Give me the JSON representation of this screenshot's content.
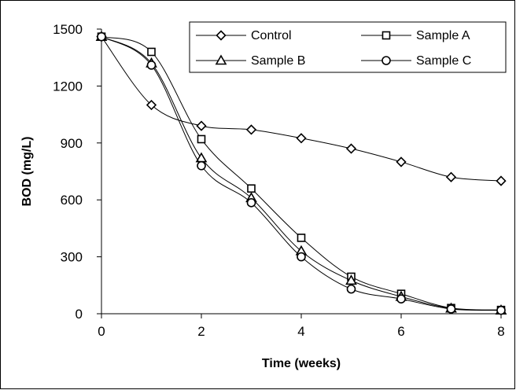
{
  "chart_data": {
    "type": "line",
    "xlabel": "Time (weeks)",
    "ylabel": "BOD (mg/L)",
    "xlim": [
      0,
      8
    ],
    "ylim": [
      0,
      1500
    ],
    "xticks": [
      "0",
      "2",
      "4",
      "6",
      "8"
    ],
    "yticks": [
      "0",
      "300",
      "600",
      "900",
      "1200",
      "1500"
    ],
    "grid": false,
    "legend_position": "top-right",
    "x": [
      0,
      1,
      2,
      3,
      4,
      5,
      6,
      7,
      8
    ],
    "series": [
      {
        "name": "Control",
        "marker": "diamond",
        "values": [
          1460,
          1100,
          990,
          970,
          925,
          870,
          800,
          720,
          700
        ]
      },
      {
        "name": "Sample A",
        "marker": "square",
        "values": [
          1460,
          1380,
          920,
          660,
          400,
          195,
          105,
          30,
          20
        ]
      },
      {
        "name": "Sample B",
        "marker": "triangle",
        "values": [
          1460,
          1320,
          820,
          610,
          330,
          175,
          90,
          28,
          18
        ]
      },
      {
        "name": "Sample C",
        "marker": "circle",
        "values": [
          1460,
          1310,
          780,
          585,
          300,
          130,
          78,
          25,
          18
        ]
      }
    ]
  }
}
